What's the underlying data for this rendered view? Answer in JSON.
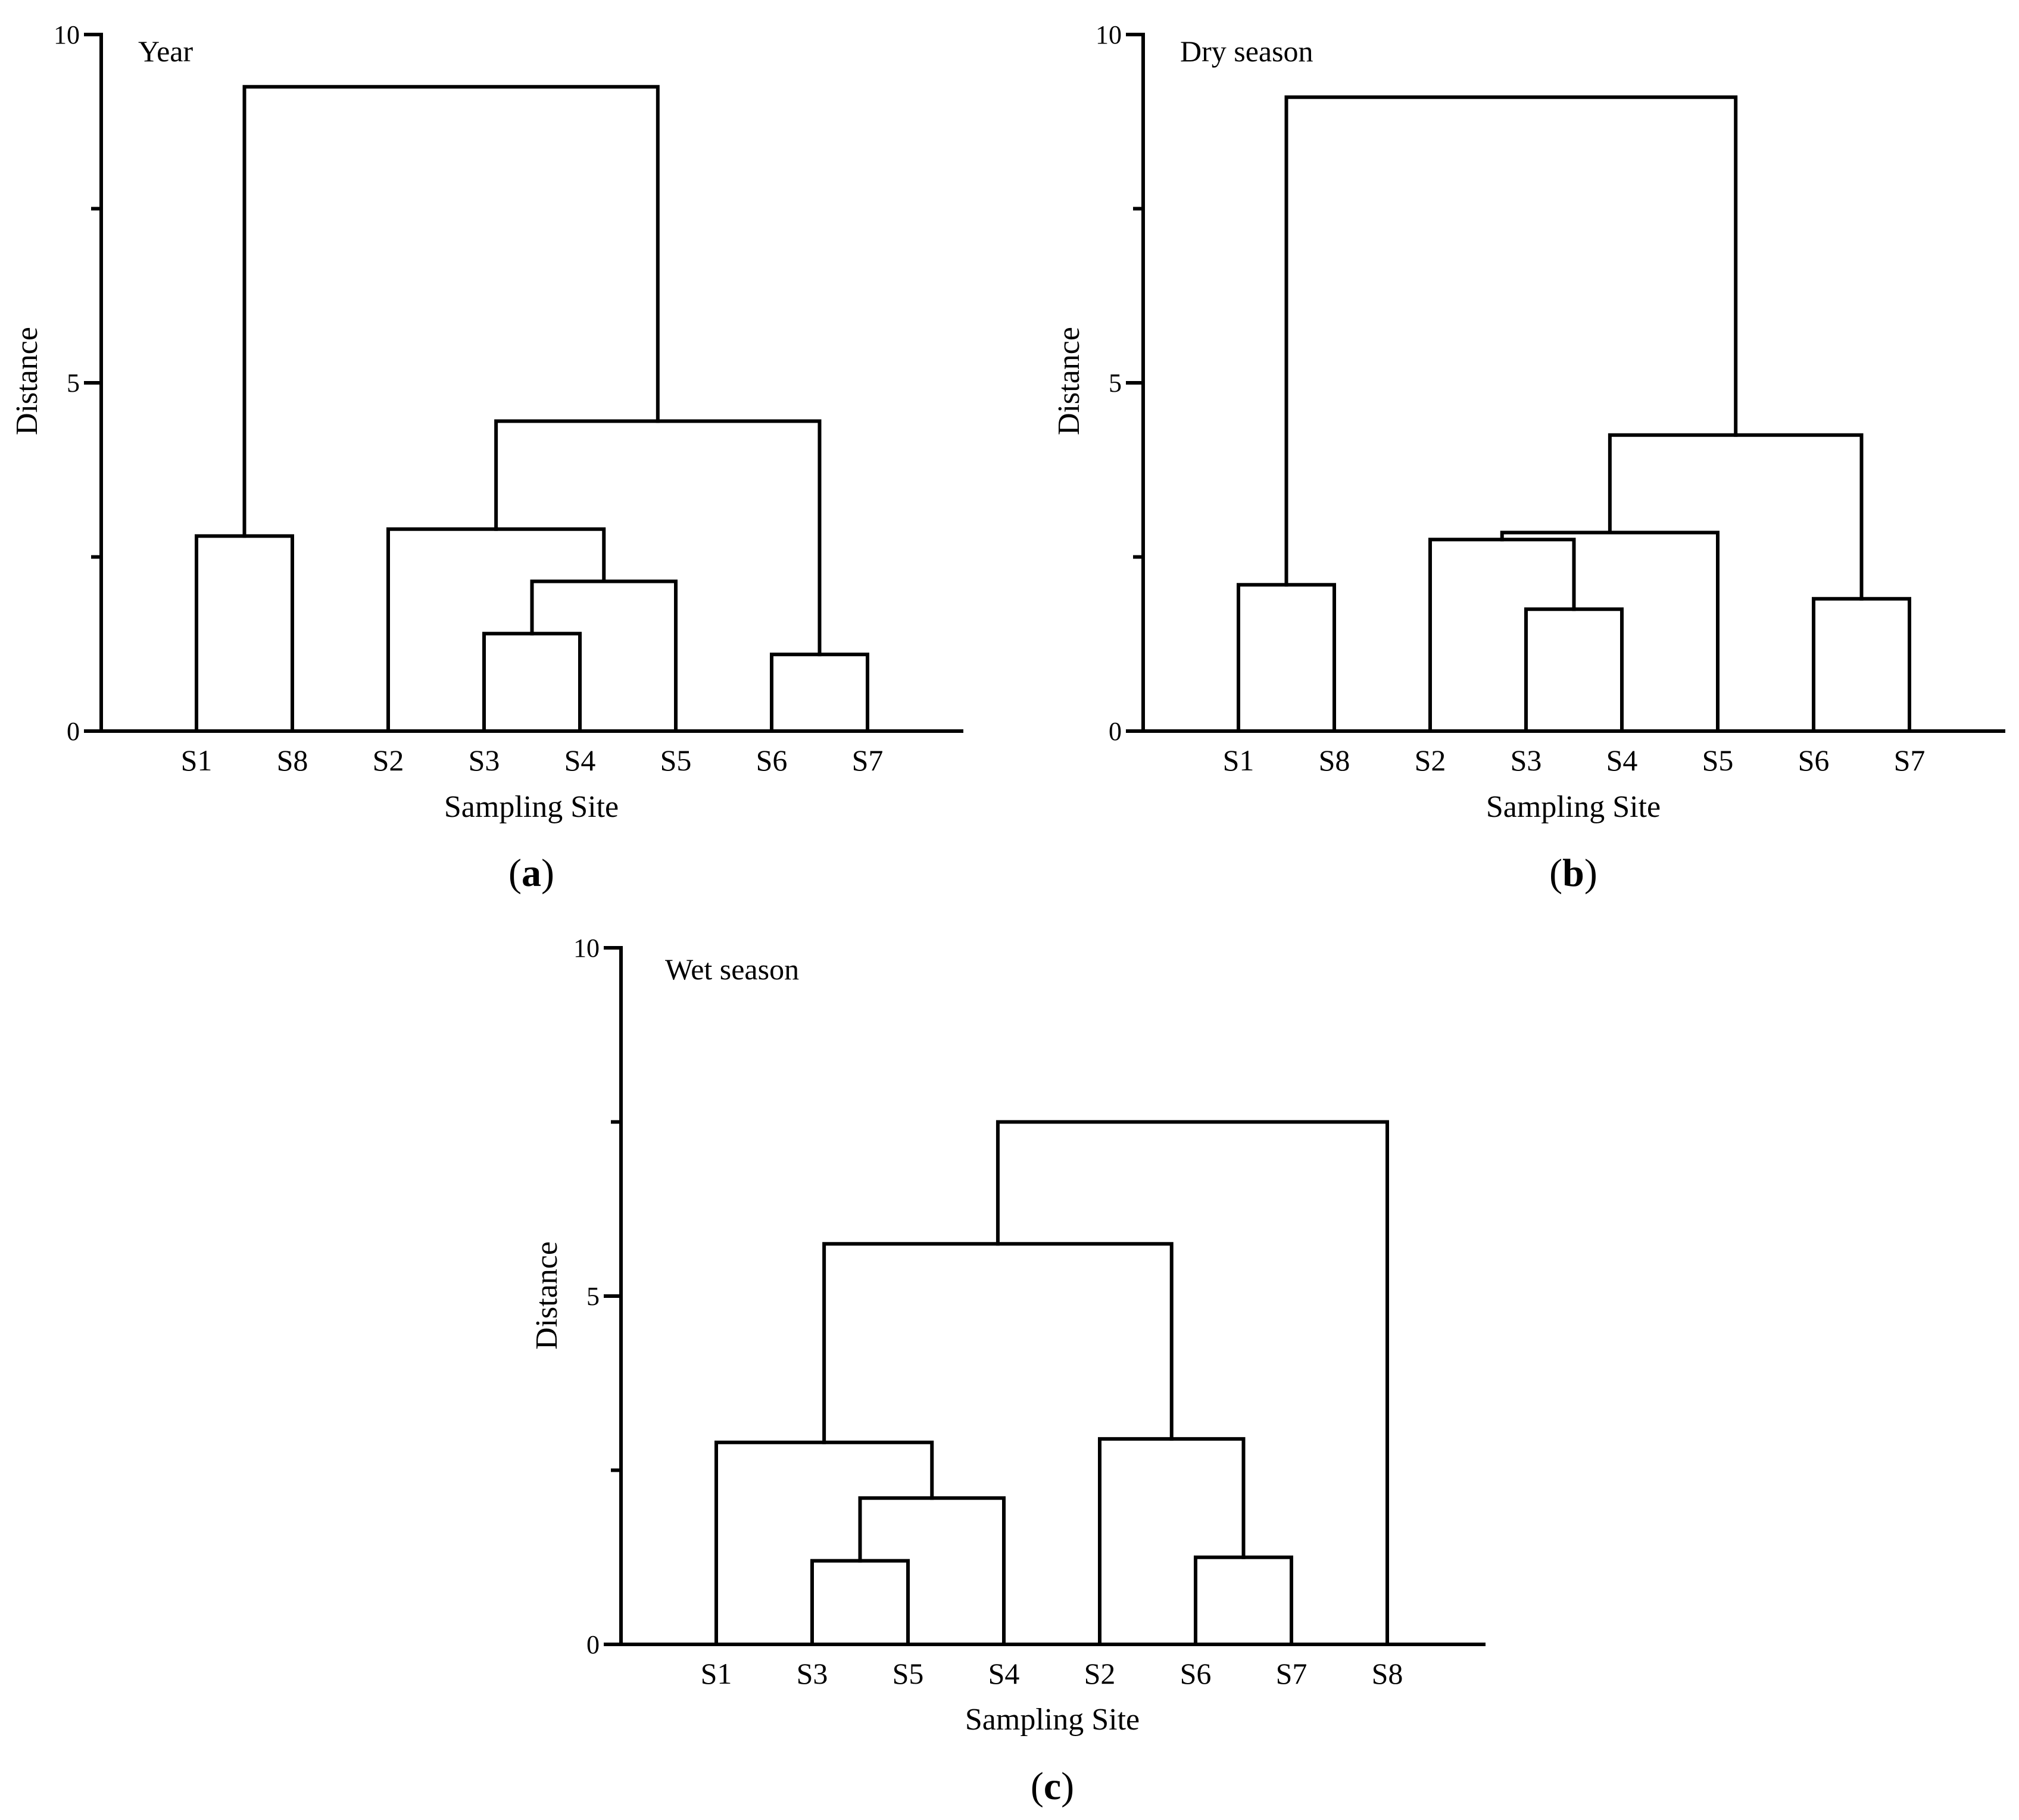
{
  "figure": {
    "panels_count": 3
  },
  "chart_data": [
    {
      "type": "dendrogram",
      "panel_letter": "a",
      "title": "Year",
      "xlabel": "Sampling Site",
      "ylabel": "Distance",
      "ylim": [
        0,
        10
      ],
      "yticks": [
        "0",
        "5",
        "10"
      ],
      "leaves": [
        "S1",
        "S8",
        "S2",
        "S3",
        "S4",
        "S5",
        "S6",
        "S7"
      ],
      "merges": [
        {
          "a": "S1",
          "b": "S8",
          "height": 2.8
        },
        {
          "a": "S3",
          "b": "S4",
          "height": 1.4
        },
        {
          "a": "m2",
          "b": "S5",
          "height": 2.15
        },
        {
          "a": "S2",
          "b": "m3",
          "height": 2.9
        },
        {
          "a": "S6",
          "b": "S7",
          "height": 1.1
        },
        {
          "a": "m4",
          "b": "m5",
          "height": 4.45
        },
        {
          "a": "m1",
          "b": "m6",
          "height": 9.25
        }
      ]
    },
    {
      "type": "dendrogram",
      "panel_letter": "b",
      "title": "Dry season",
      "xlabel": "Sampling Site",
      "ylabel": "Distance",
      "ylim": [
        0,
        10
      ],
      "yticks": [
        "0",
        "5",
        "10"
      ],
      "leaves": [
        "S1",
        "S8",
        "S2",
        "S3",
        "S4",
        "S5",
        "S6",
        "S7"
      ],
      "merges": [
        {
          "a": "S1",
          "b": "S8",
          "height": 2.1
        },
        {
          "a": "S3",
          "b": "S4",
          "height": 1.75
        },
        {
          "a": "S2",
          "b": "m2",
          "height": 2.75
        },
        {
          "a": "m3",
          "b": "S5",
          "height": 2.85
        },
        {
          "a": "S6",
          "b": "S7",
          "height": 1.9
        },
        {
          "a": "m4",
          "b": "m5",
          "height": 4.25
        },
        {
          "a": "m1",
          "b": "m6",
          "height": 9.1
        }
      ]
    },
    {
      "type": "dendrogram",
      "panel_letter": "c",
      "title": "Wet season",
      "xlabel": "Sampling Site",
      "ylabel": "Distance",
      "ylim": [
        0,
        10
      ],
      "yticks": [
        "0",
        "5",
        "10"
      ],
      "leaves": [
        "S1",
        "S3",
        "S5",
        "S4",
        "S2",
        "S6",
        "S7",
        "S8"
      ],
      "merges": [
        {
          "a": "S3",
          "b": "S5",
          "height": 1.2
        },
        {
          "a": "m1",
          "b": "S4",
          "height": 2.1
        },
        {
          "a": "S1",
          "b": "m2",
          "height": 2.9
        },
        {
          "a": "S6",
          "b": "S7",
          "height": 1.25
        },
        {
          "a": "S2",
          "b": "m4",
          "height": 2.95
        },
        {
          "a": "m3",
          "b": "m5",
          "height": 5.75
        },
        {
          "a": "m6",
          "b": "S8",
          "height": 7.5
        }
      ]
    }
  ]
}
